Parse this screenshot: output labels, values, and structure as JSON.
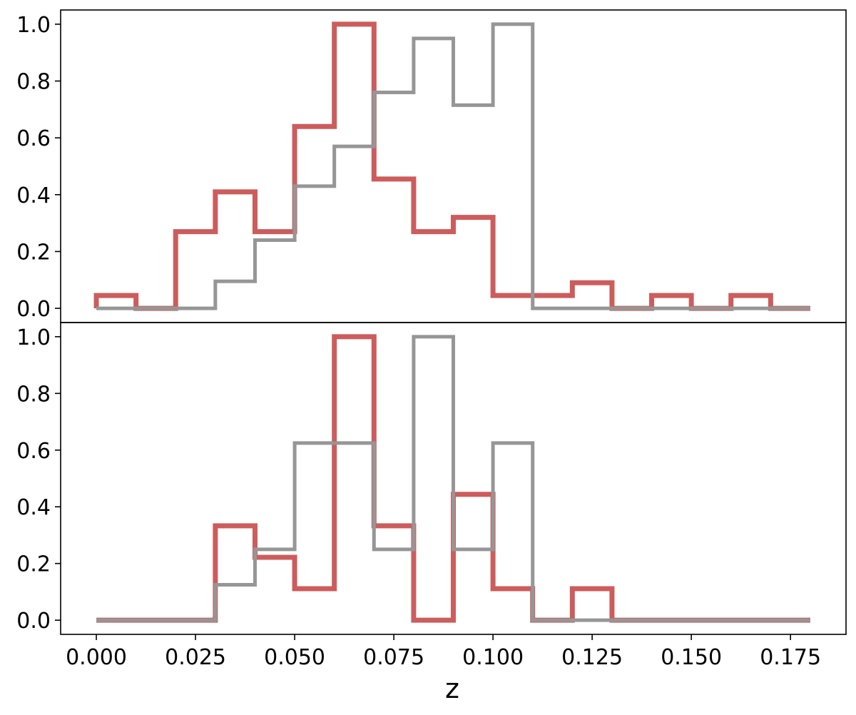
{
  "chart_data": [
    {
      "type": "step-histogram",
      "panel": "top",
      "xlabel": "",
      "ylabel": "",
      "xlim": [
        -0.009,
        0.189
      ],
      "ylim": [
        -0.05,
        1.05
      ],
      "yticks": [
        "0.0",
        "0.2",
        "0.4",
        "0.6",
        "0.8",
        "1.0"
      ],
      "bin_edges": [
        0.0,
        0.01,
        0.02,
        0.03,
        0.04,
        0.05,
        0.06,
        0.07,
        0.08,
        0.09,
        0.1,
        0.11,
        0.12,
        0.13,
        0.14,
        0.15,
        0.16,
        0.17,
        0.18
      ],
      "series": [
        {
          "color": "#CD5C5C",
          "values": [
            0.045,
            0.0,
            0.27,
            0.41,
            0.27,
            0.64,
            1.0,
            0.455,
            0.27,
            0.32,
            0.045,
            0.045,
            0.09,
            0.0,
            0.045,
            0.0,
            0.045,
            0.0
          ]
        },
        {
          "color": "#969696",
          "values": [
            0.0,
            0.0,
            0.0,
            0.095,
            0.24,
            0.43,
            0.57,
            0.76,
            0.95,
            0.715,
            1.0,
            0.0,
            0.0,
            0.0,
            0.0,
            0.0,
            0.0,
            0.0
          ]
        }
      ]
    },
    {
      "type": "step-histogram",
      "panel": "bottom",
      "xlabel": "z",
      "ylabel": "",
      "xlim": [
        -0.009,
        0.189
      ],
      "ylim": [
        -0.05,
        1.05
      ],
      "xticks": [
        "0.000",
        "0.025",
        "0.050",
        "0.075",
        "0.100",
        "0.125",
        "0.150",
        "0.175"
      ],
      "yticks": [
        "0.0",
        "0.2",
        "0.4",
        "0.6",
        "0.8",
        "1.0"
      ],
      "bin_edges": [
        0.0,
        0.01,
        0.02,
        0.03,
        0.04,
        0.05,
        0.06,
        0.07,
        0.08,
        0.09,
        0.1,
        0.11,
        0.12,
        0.13,
        0.14,
        0.15,
        0.16,
        0.17,
        0.18
      ],
      "series": [
        {
          "color": "#CD5C5C",
          "values": [
            0.0,
            0.0,
            0.0,
            0.333,
            0.222,
            0.111,
            1.0,
            0.333,
            0.0,
            0.444,
            0.111,
            0.0,
            0.111,
            0.0,
            0.0,
            0.0,
            0.0,
            0.0
          ]
        },
        {
          "color": "#969696",
          "values": [
            0.0,
            0.0,
            0.0,
            0.125,
            0.25,
            0.625,
            0.625,
            0.25,
            1.0,
            0.25,
            0.625,
            0.0,
            0.0,
            0.0,
            0.0,
            0.0,
            0.0,
            0.0
          ]
        }
      ]
    }
  ]
}
